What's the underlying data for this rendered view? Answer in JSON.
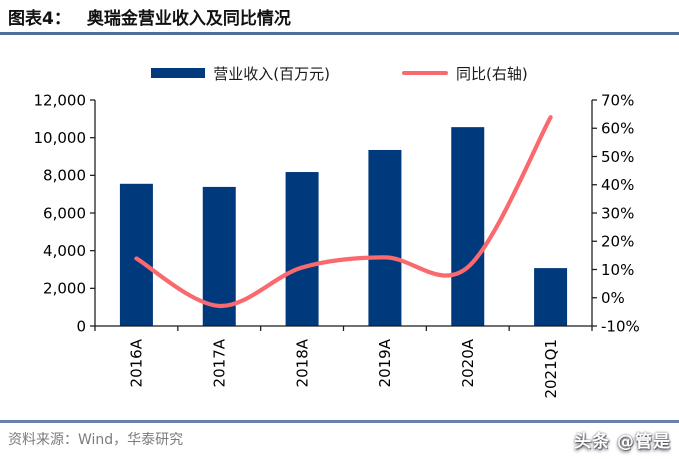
{
  "header": {
    "prefix": "图表4：",
    "title": "奥瑞金营业收入及同比情况"
  },
  "legend": [
    {
      "label": "营业收入(百万元)",
      "swatch": "bar",
      "color": "#003a7c"
    },
    {
      "label": "同比(右轴)",
      "swatch": "line",
      "color": "#fa696e"
    }
  ],
  "chart_data": {
    "type": "bar",
    "subtype": "combo-bar-line-dual-axis",
    "categories": [
      "2016A",
      "2017A",
      "2018A",
      "2019A",
      "2020A",
      "2021Q1"
    ],
    "series": [
      {
        "name": "营业收入(百万元)",
        "type": "bar",
        "axis": "left",
        "values": [
          7551,
          7385,
          8175,
          9347,
          10559,
          3074
        ]
      },
      {
        "name": "同比(右轴)",
        "type": "line",
        "axis": "right",
        "values": [
          13.9,
          -2.9,
          10.7,
          14.3,
          10.8,
          63.9
        ]
      }
    ],
    "left_axis": {
      "min": 0,
      "max": 12000,
      "step": 2000,
      "tick_labels": [
        "0",
        "2,000",
        "4,000",
        "6,000",
        "8,000",
        "10,000",
        "12,000"
      ]
    },
    "right_axis": {
      "min": -10,
      "max": 70,
      "step": 10,
      "tick_labels": [
        "-10%",
        "0%",
        "10%",
        "20%",
        "30%",
        "40%",
        "50%",
        "60%",
        "70%"
      ]
    },
    "grid": false,
    "legend_position": "top",
    "colors": {
      "bar": "#003a7c",
      "line": "#fa696e",
      "axis": "#1a1a1a"
    }
  },
  "footer": {
    "source": "资料来源：Wind，华泰研究",
    "watermark": "头条 @管是"
  }
}
